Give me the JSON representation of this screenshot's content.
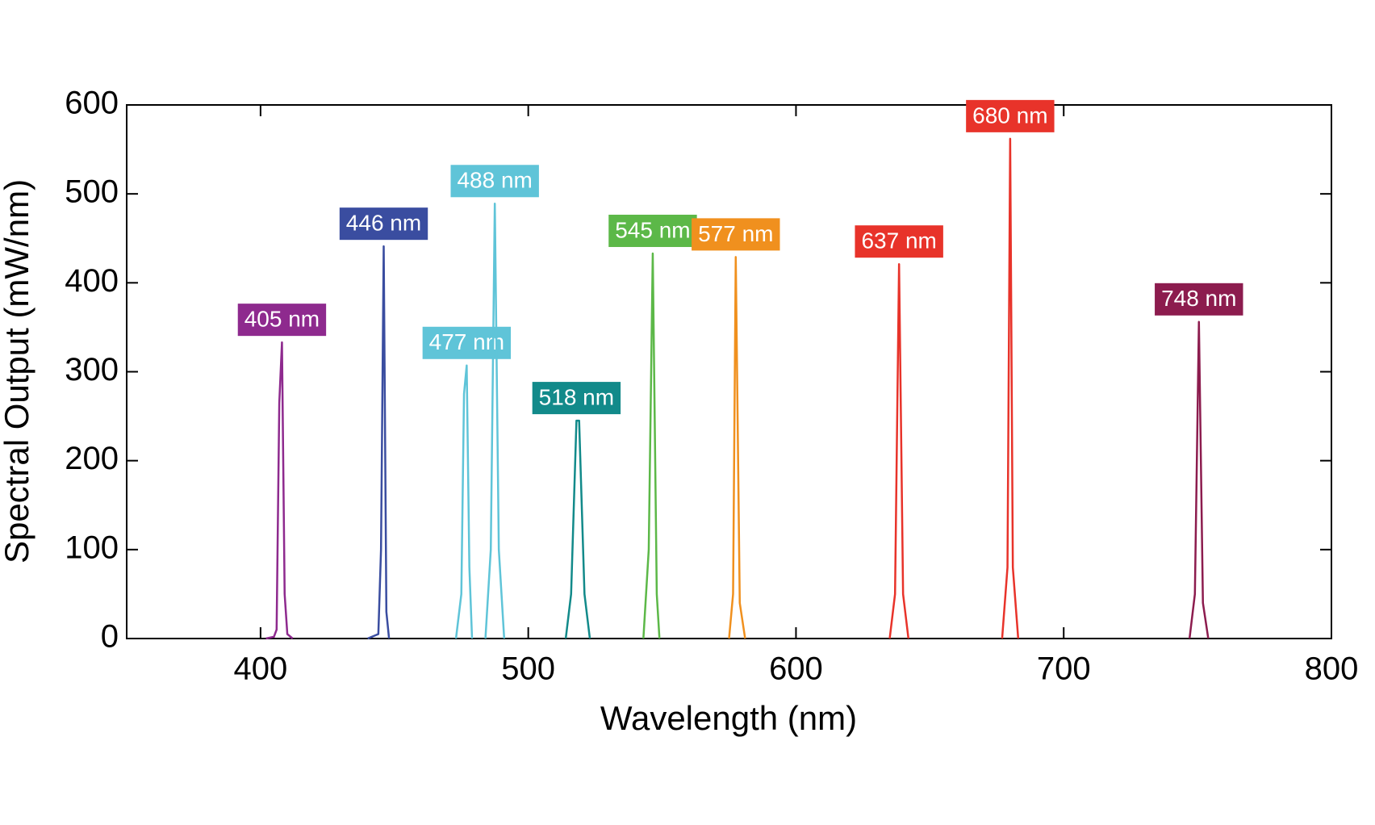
{
  "chart_data": {
    "type": "line",
    "xlabel": "Wavelength (nm)",
    "ylabel": "Spectral Output (mW/nm)",
    "xlim": [
      350,
      800
    ],
    "ylim": [
      0,
      600
    ],
    "xticks": [
      400,
      500,
      600,
      700,
      800
    ],
    "yticks": [
      0,
      100,
      200,
      300,
      400,
      500,
      600
    ],
    "series": [
      {
        "name": "405 nm",
        "color": "#8e2a8e",
        "x": [
          402,
          405,
          406,
          407,
          408,
          409,
          410,
          412
        ],
        "values": [
          0,
          2,
          10,
          265,
          333,
          50,
          5,
          0
        ]
      },
      {
        "name": "446 nm",
        "color": "#3a4da0",
        "x": [
          440,
          444,
          445,
          446,
          447,
          448
        ],
        "values": [
          0,
          5,
          100,
          441,
          30,
          0
        ]
      },
      {
        "name": "477 nm",
        "color": "#5fc4d8",
        "x": [
          473,
          475,
          476,
          477,
          478,
          479
        ],
        "values": [
          0,
          50,
          275,
          307,
          80,
          0
        ]
      },
      {
        "name": "488 nm",
        "color": "#5fc4d8",
        "x": [
          484,
          486,
          487.5,
          489,
          491
        ],
        "values": [
          0,
          100,
          489,
          100,
          0
        ]
      },
      {
        "name": "518 nm",
        "color": "#128a8a",
        "x": [
          514,
          516,
          518,
          519,
          521,
          523
        ],
        "values": [
          0,
          50,
          245,
          245,
          50,
          0
        ]
      },
      {
        "name": "545 nm",
        "color": "#5cb848",
        "x": [
          543,
          545,
          546.5,
          548,
          549
        ],
        "values": [
          0,
          100,
          433,
          50,
          0
        ]
      },
      {
        "name": "577 nm",
        "color": "#f0901e",
        "x": [
          575,
          576.5,
          577.5,
          579,
          581
        ],
        "values": [
          0,
          50,
          429,
          40,
          0
        ]
      },
      {
        "name": "637 nm",
        "color": "#e8332a",
        "x": [
          635,
          637,
          638.5,
          640,
          642
        ],
        "values": [
          0,
          50,
          421,
          50,
          0
        ]
      },
      {
        "name": "680 nm",
        "color": "#e8332a",
        "x": [
          677,
          679,
          680,
          681,
          683
        ],
        "values": [
          0,
          80,
          562,
          80,
          0
        ]
      },
      {
        "name": "748 nm",
        "color": "#8c1c4e",
        "x": [
          747,
          749,
          750.5,
          752,
          754
        ],
        "values": [
          0,
          50,
          356,
          40,
          0
        ]
      }
    ]
  }
}
